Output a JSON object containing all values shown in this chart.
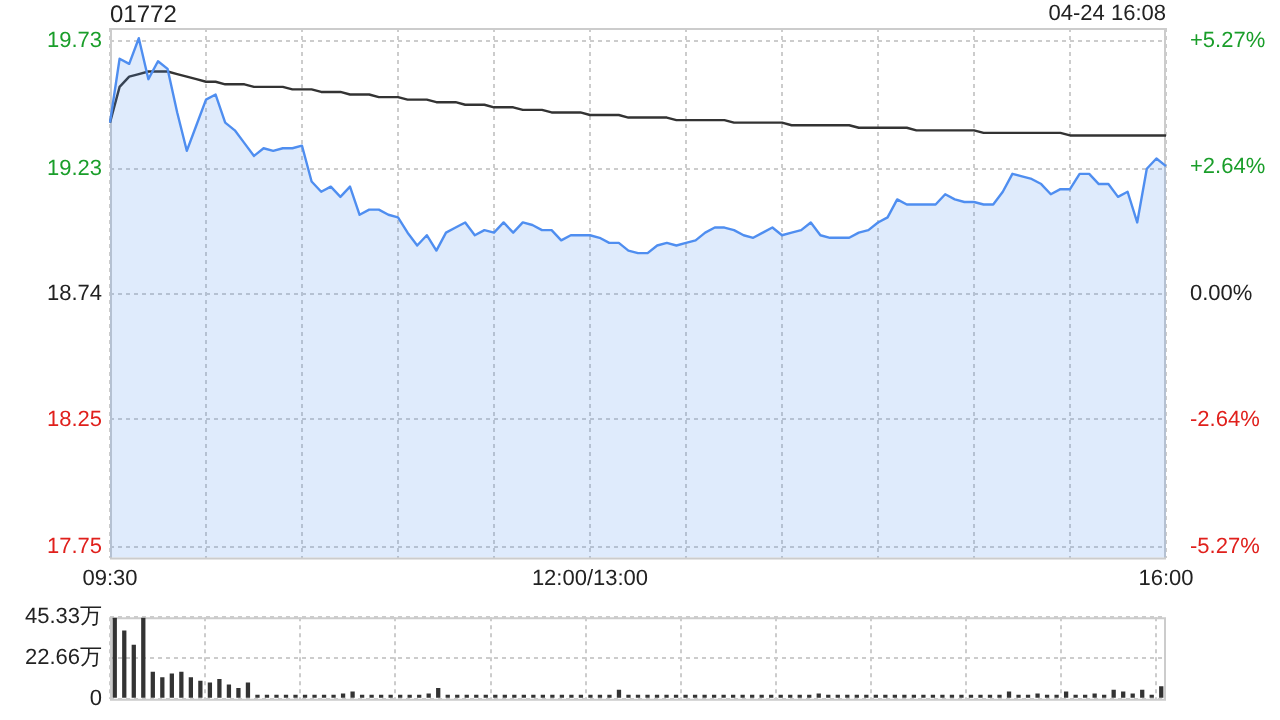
{
  "chart_data": [
    {
      "type": "area",
      "title": "01772",
      "annotations": [
        "04-24 16:08"
      ],
      "categories": [
        "09:30",
        null,
        null,
        null,
        null,
        null,
        null,
        null,
        null,
        null,
        null,
        null,
        null,
        null,
        null,
        null,
        null,
        null,
        null,
        null,
        null,
        null,
        null,
        null,
        null,
        null,
        null,
        null,
        null,
        null,
        null,
        null,
        null,
        null,
        null,
        null,
        null,
        null,
        null,
        null,
        null,
        null,
        null,
        null,
        null,
        null,
        null,
        null,
        null,
        null,
        "12:00/13:00",
        null,
        null,
        null,
        null,
        null,
        null,
        null,
        null,
        null,
        null,
        null,
        null,
        null,
        null,
        null,
        null,
        null,
        null,
        null,
        null,
        null,
        null,
        null,
        null,
        null,
        null,
        null,
        null,
        null,
        null,
        null,
        null,
        null,
        null,
        null,
        null,
        null,
        null,
        null,
        null,
        null,
        null,
        null,
        null,
        null,
        null,
        null,
        null,
        null,
        null,
        null,
        null,
        null,
        null,
        null,
        null,
        null,
        null,
        null,
        "16:00"
      ],
      "series": [
        {
          "type": "area",
          "color": "#4f8ef0",
          "values": [
            19.41,
            19.66,
            19.64,
            19.74,
            19.58,
            19.65,
            19.62,
            19.45,
            19.3,
            19.4,
            19.5,
            19.52,
            19.41,
            19.38,
            19.33,
            19.28,
            19.31,
            19.3,
            19.31,
            19.31,
            19.32,
            19.18,
            19.14,
            19.16,
            19.12,
            19.16,
            19.05,
            19.07,
            19.07,
            19.05,
            19.04,
            18.98,
            18.93,
            18.97,
            18.91,
            18.98,
            19.0,
            19.02,
            18.97,
            18.99,
            18.98,
            19.02,
            18.98,
            19.02,
            19.01,
            18.99,
            18.99,
            18.95,
            18.97,
            18.97,
            18.97,
            18.96,
            18.94,
            18.94,
            18.91,
            18.9,
            18.9,
            18.93,
            18.94,
            18.93,
            18.94,
            18.95,
            18.98,
            19.0,
            19.0,
            18.99,
            18.97,
            18.96,
            18.98,
            19.0,
            18.97,
            18.98,
            18.99,
            19.02,
            18.97,
            18.96,
            18.96,
            18.96,
            18.98,
            18.99,
            19.02,
            19.04,
            19.11,
            19.09,
            19.09,
            19.09,
            19.09,
            19.13,
            19.11,
            19.1,
            19.1,
            19.09,
            19.09,
            19.14,
            19.21,
            19.2,
            19.19,
            19.17,
            19.13,
            19.15,
            19.15,
            19.21,
            19.21,
            19.17,
            19.17,
            19.12,
            19.14,
            19.02,
            19.23,
            19.27,
            19.24
          ]
        },
        {
          "type": "line",
          "color": "#333333",
          "values": [
            19.41,
            19.55,
            19.59,
            19.6,
            19.61,
            19.61,
            19.61,
            19.6,
            19.59,
            19.58,
            19.57,
            19.57,
            19.56,
            19.56,
            19.56,
            19.55,
            19.55,
            19.55,
            19.55,
            19.54,
            19.54,
            19.54,
            19.53,
            19.53,
            19.53,
            19.52,
            19.52,
            19.52,
            19.51,
            19.51,
            19.51,
            19.5,
            19.5,
            19.5,
            19.49,
            19.49,
            19.49,
            19.48,
            19.48,
            19.48,
            19.47,
            19.47,
            19.47,
            19.46,
            19.46,
            19.46,
            19.45,
            19.45,
            19.45,
            19.45,
            19.44,
            19.44,
            19.44,
            19.44,
            19.43,
            19.43,
            19.43,
            19.43,
            19.43,
            19.42,
            19.42,
            19.42,
            19.42,
            19.42,
            19.42,
            19.41,
            19.41,
            19.41,
            19.41,
            19.41,
            19.41,
            19.4,
            19.4,
            19.4,
            19.4,
            19.4,
            19.4,
            19.4,
            19.39,
            19.39,
            19.39,
            19.39,
            19.39,
            19.39,
            19.38,
            19.38,
            19.38,
            19.38,
            19.38,
            19.38,
            19.38,
            19.37,
            19.37,
            19.37,
            19.37,
            19.37,
            19.37,
            19.37,
            19.37,
            19.37,
            19.36,
            19.36,
            19.36,
            19.36,
            19.36,
            19.36,
            19.36,
            19.36,
            19.36,
            19.36,
            19.36
          ]
        }
      ],
      "ylim": [
        17.71,
        19.78
      ],
      "yticks": [
        19.73,
        19.23,
        18.74,
        18.25,
        17.75
      ],
      "y2lim": [
        -5.5,
        5.53
      ],
      "y2ticks": [
        {
          "value": 5.27,
          "label": "+5.27%"
        },
        {
          "value": 2.64,
          "label": "+2.64%"
        },
        {
          "value": 0,
          "label": "0.00%"
        },
        {
          "value": -2.64,
          "label": "-2.64%"
        },
        {
          "value": -5.27,
          "label": "-5.27%"
        }
      ],
      "grid": true,
      "marker": "none"
    },
    {
      "type": "bar",
      "categories": [
        null,
        null,
        null,
        null,
        null,
        null,
        null,
        null,
        null,
        null,
        null,
        null,
        null,
        null,
        null,
        null,
        null,
        null,
        null,
        null,
        null,
        null,
        null,
        null,
        null,
        null,
        null,
        null,
        null,
        null,
        null,
        null,
        null,
        null,
        null,
        null,
        null,
        null,
        null,
        null,
        null,
        null,
        null,
        null,
        null,
        null,
        null,
        null,
        null,
        null,
        null,
        null,
        null,
        null,
        null,
        null,
        null,
        null,
        null,
        null,
        null,
        null,
        null,
        null,
        null,
        null,
        null,
        null,
        null,
        null,
        null,
        null,
        null,
        null,
        null,
        null,
        null,
        null,
        null,
        null,
        null,
        null,
        null,
        null,
        null,
        null,
        null,
        null,
        null,
        null,
        null,
        null,
        null,
        null,
        null,
        null,
        null,
        null,
        null,
        null,
        null,
        null,
        null,
        null,
        null,
        null,
        null,
        null,
        null,
        null,
        null
      ],
      "values": [
        45,
        38,
        30,
        45,
        15,
        12,
        14,
        15,
        12,
        10,
        9,
        11,
        8,
        6,
        9,
        2,
        2,
        1,
        2,
        2,
        1,
        1,
        2,
        1,
        3,
        4,
        2,
        1,
        1,
        2,
        2,
        1,
        2,
        3,
        6,
        2,
        1,
        2,
        2,
        1,
        1,
        2,
        1,
        2,
        1,
        2,
        1,
        1,
        2,
        1,
        2,
        1,
        1,
        5,
        1,
        2,
        1,
        1,
        2,
        1,
        1,
        2,
        1,
        1,
        2,
        1,
        1,
        2,
        1,
        1,
        2,
        1,
        2,
        1,
        3,
        1,
        1,
        2,
        1,
        1,
        2,
        1,
        1,
        2,
        1,
        2,
        1,
        1,
        2,
        1,
        1,
        2,
        1,
        1,
        4,
        2,
        1,
        3,
        1,
        2,
        4,
        2,
        1,
        3,
        2,
        5,
        4,
        3,
        5,
        2,
        7
      ],
      "color": "#333333",
      "ylim": [
        0,
        45.33
      ],
      "yticks": [
        {
          "value": 45.33,
          "label": "45.33万"
        },
        {
          "value": 22.66,
          "label": "22.66万"
        },
        0
      ],
      "grid": true,
      "tick_labels": "y"
    }
  ]
}
